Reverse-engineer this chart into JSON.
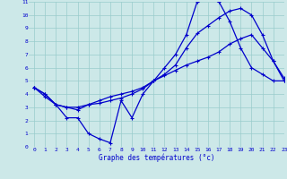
{
  "title": "Graphe des températures (°c)",
  "bg_color": "#cce8e8",
  "grid_color": "#99cccc",
  "line_color": "#0000cc",
  "label_color": "#0000cc",
  "xlim": [
    -0.5,
    23
  ],
  "ylim": [
    0,
    11
  ],
  "xticks": [
    0,
    1,
    2,
    3,
    4,
    5,
    6,
    7,
    8,
    9,
    10,
    11,
    12,
    13,
    14,
    15,
    16,
    17,
    18,
    19,
    20,
    21,
    22,
    23
  ],
  "yticks": [
    0,
    1,
    2,
    3,
    4,
    5,
    6,
    7,
    8,
    9,
    10,
    11
  ],
  "line1_x": [
    0,
    1,
    2,
    3,
    4,
    5,
    6,
    7,
    8,
    9,
    10,
    11,
    12,
    13,
    14,
    15,
    16,
    17,
    18,
    19,
    20,
    21,
    22,
    23
  ],
  "line1_y": [
    4.5,
    4.0,
    3.2,
    3.0,
    3.0,
    3.2,
    3.3,
    3.5,
    3.7,
    4.0,
    4.4,
    5.0,
    5.5,
    6.2,
    7.5,
    8.6,
    9.2,
    9.8,
    10.3,
    10.5,
    10.0,
    8.5,
    6.5,
    5.2
  ],
  "line2_x": [
    0,
    1,
    2,
    3,
    4,
    5,
    6,
    7,
    8,
    9,
    10,
    11,
    12,
    13,
    14,
    15,
    16,
    17,
    18,
    19,
    20,
    21,
    22,
    23
  ],
  "line2_y": [
    4.5,
    3.8,
    3.2,
    3.0,
    2.8,
    3.2,
    3.5,
    3.8,
    4.0,
    4.2,
    4.5,
    5.0,
    5.4,
    5.8,
    6.2,
    6.5,
    6.8,
    7.2,
    7.8,
    8.2,
    8.5,
    7.5,
    6.5,
    5.0
  ],
  "line3_x": [
    0,
    1,
    2,
    3,
    4,
    5,
    6,
    7,
    8,
    9,
    10,
    11,
    12,
    13,
    14,
    15,
    16,
    17,
    18,
    19,
    20,
    21,
    22,
    23
  ],
  "line3_y": [
    4.5,
    4.0,
    3.2,
    2.2,
    2.2,
    1.0,
    0.6,
    0.3,
    3.5,
    2.2,
    4.0,
    5.0,
    6.0,
    7.0,
    8.5,
    11.0,
    11.2,
    11.0,
    9.5,
    7.5,
    6.0,
    5.5,
    5.0,
    5.0
  ]
}
